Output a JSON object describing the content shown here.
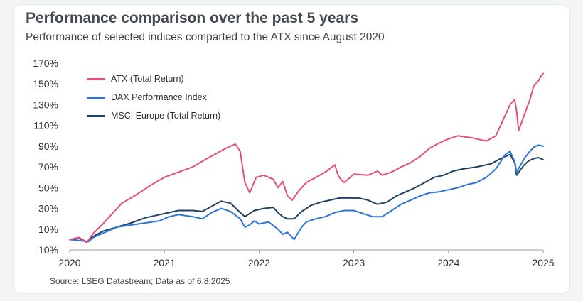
{
  "header": {
    "title": "Performance comparison over the past 5 years",
    "subtitle": "Performance of selected indices comparted to the ATX since August 2020"
  },
  "footer": {
    "source": "Source: LSEG Datastream; Data as of 6.8.2025"
  },
  "colors": {
    "atx": "#e4507a",
    "dax": "#2f74d8",
    "msci": "#1f4260",
    "axis": "#9aa1a8",
    "text": "#2b2f33"
  },
  "chart_data": {
    "type": "line",
    "title": "Performance comparison over the past 5 years",
    "subtitle": "Performance of selected indices comparted to the ATX since August 2020",
    "ylim": [
      -10,
      170
    ],
    "xlim": [
      2020,
      2025
    ],
    "y_ticks": [
      -10,
      10,
      30,
      50,
      70,
      90,
      110,
      130,
      150,
      170
    ],
    "y_tick_labels": [
      "-10%",
      "10%",
      "30%",
      "50%",
      "70%",
      "90%",
      "110%",
      "130%",
      "150%",
      "170%"
    ],
    "x_ticks": [
      2020,
      2021,
      2022,
      2023,
      2024,
      2025
    ],
    "x_tick_labels": [
      "2020",
      "2021",
      "2022",
      "2023",
      "2024",
      "2025"
    ],
    "grid": false,
    "legend_position": "top-left",
    "series": [
      {
        "name": "ATX (Total Return)",
        "color": "#e4507a",
        "points": [
          [
            2020.0,
            0
          ],
          [
            2020.1,
            2
          ],
          [
            2020.18,
            -3
          ],
          [
            2020.25,
            6
          ],
          [
            2020.35,
            15
          ],
          [
            2020.45,
            25
          ],
          [
            2020.55,
            35
          ],
          [
            2020.7,
            43
          ],
          [
            2020.85,
            52
          ],
          [
            2021.0,
            60
          ],
          [
            2021.15,
            65
          ],
          [
            2021.3,
            70
          ],
          [
            2021.45,
            78
          ],
          [
            2021.55,
            83
          ],
          [
            2021.65,
            88
          ],
          [
            2021.75,
            92
          ],
          [
            2021.8,
            85
          ],
          [
            2021.85,
            55
          ],
          [
            2021.9,
            45
          ],
          [
            2021.97,
            60
          ],
          [
            2022.05,
            62
          ],
          [
            2022.15,
            58
          ],
          [
            2022.2,
            50
          ],
          [
            2022.25,
            56
          ],
          [
            2022.3,
            42
          ],
          [
            2022.35,
            38
          ],
          [
            2022.42,
            47
          ],
          [
            2022.5,
            55
          ],
          [
            2022.6,
            60
          ],
          [
            2022.7,
            65
          ],
          [
            2022.8,
            72
          ],
          [
            2022.83,
            63
          ],
          [
            2022.86,
            58
          ],
          [
            2022.9,
            55
          ],
          [
            2023.0,
            63
          ],
          [
            2023.15,
            62
          ],
          [
            2023.25,
            66
          ],
          [
            2023.3,
            62
          ],
          [
            2023.4,
            65
          ],
          [
            2023.5,
            70
          ],
          [
            2023.6,
            74
          ],
          [
            2023.7,
            80
          ],
          [
            2023.8,
            88
          ],
          [
            2023.9,
            93
          ],
          [
            2024.0,
            97
          ],
          [
            2024.1,
            100
          ],
          [
            2024.25,
            98
          ],
          [
            2024.4,
            95
          ],
          [
            2024.5,
            100
          ],
          [
            2024.55,
            110
          ],
          [
            2024.6,
            120
          ],
          [
            2024.65,
            130
          ],
          [
            2024.7,
            135
          ],
          [
            2024.72,
            123
          ],
          [
            2024.74,
            105
          ],
          [
            2024.78,
            115
          ],
          [
            2024.82,
            125
          ],
          [
            2024.86,
            135
          ],
          [
            2024.9,
            148
          ],
          [
            2024.95,
            153
          ],
          [
            2024.98,
            158
          ],
          [
            2025.0,
            160
          ]
        ]
      },
      {
        "name": "DAX Performance Index",
        "color": "#2f74d8",
        "points": [
          [
            2020.0,
            0
          ],
          [
            2020.1,
            -1
          ],
          [
            2020.2,
            -2
          ],
          [
            2020.25,
            2
          ],
          [
            2020.35,
            6
          ],
          [
            2020.5,
            12
          ],
          [
            2020.65,
            14
          ],
          [
            2020.8,
            16
          ],
          [
            2020.95,
            18
          ],
          [
            2021.05,
            22
          ],
          [
            2021.15,
            24
          ],
          [
            2021.3,
            22
          ],
          [
            2021.4,
            20
          ],
          [
            2021.5,
            26
          ],
          [
            2021.6,
            30
          ],
          [
            2021.7,
            27
          ],
          [
            2021.8,
            20
          ],
          [
            2021.85,
            12
          ],
          [
            2021.9,
            14
          ],
          [
            2021.95,
            18
          ],
          [
            2022.0,
            15
          ],
          [
            2022.1,
            17
          ],
          [
            2022.2,
            10
          ],
          [
            2022.25,
            5
          ],
          [
            2022.3,
            7
          ],
          [
            2022.37,
            0
          ],
          [
            2022.45,
            12
          ],
          [
            2022.5,
            17
          ],
          [
            2022.6,
            20
          ],
          [
            2022.7,
            22
          ],
          [
            2022.8,
            26
          ],
          [
            2022.9,
            28
          ],
          [
            2023.0,
            28
          ],
          [
            2023.1,
            25
          ],
          [
            2023.2,
            22
          ],
          [
            2023.3,
            22
          ],
          [
            2023.4,
            28
          ],
          [
            2023.5,
            34
          ],
          [
            2023.6,
            38
          ],
          [
            2023.7,
            42
          ],
          [
            2023.8,
            45
          ],
          [
            2023.9,
            46
          ],
          [
            2024.0,
            48
          ],
          [
            2024.1,
            50
          ],
          [
            2024.2,
            53
          ],
          [
            2024.3,
            55
          ],
          [
            2024.4,
            60
          ],
          [
            2024.5,
            68
          ],
          [
            2024.55,
            75
          ],
          [
            2024.6,
            82
          ],
          [
            2024.65,
            85
          ],
          [
            2024.7,
            75
          ],
          [
            2024.72,
            65
          ],
          [
            2024.75,
            70
          ],
          [
            2024.8,
            78
          ],
          [
            2024.85,
            84
          ],
          [
            2024.9,
            89
          ],
          [
            2024.95,
            91
          ],
          [
            2025.0,
            90
          ]
        ]
      },
      {
        "name": "MSCI Europe (Total Return)",
        "color": "#1f4260",
        "points": [
          [
            2020.0,
            0
          ],
          [
            2020.1,
            1
          ],
          [
            2020.18,
            -2
          ],
          [
            2020.25,
            3
          ],
          [
            2020.35,
            8
          ],
          [
            2020.5,
            12
          ],
          [
            2020.65,
            16
          ],
          [
            2020.8,
            21
          ],
          [
            2020.95,
            24
          ],
          [
            2021.05,
            26
          ],
          [
            2021.15,
            28
          ],
          [
            2021.3,
            28
          ],
          [
            2021.4,
            27
          ],
          [
            2021.5,
            32
          ],
          [
            2021.6,
            37
          ],
          [
            2021.7,
            35
          ],
          [
            2021.8,
            26
          ],
          [
            2021.85,
            22
          ],
          [
            2021.95,
            28
          ],
          [
            2022.05,
            30
          ],
          [
            2022.15,
            31
          ],
          [
            2022.2,
            26
          ],
          [
            2022.25,
            22
          ],
          [
            2022.3,
            20
          ],
          [
            2022.37,
            20
          ],
          [
            2022.45,
            27
          ],
          [
            2022.55,
            33
          ],
          [
            2022.65,
            36
          ],
          [
            2022.75,
            38
          ],
          [
            2022.85,
            40
          ],
          [
            2022.95,
            40
          ],
          [
            2023.05,
            40
          ],
          [
            2023.15,
            38
          ],
          [
            2023.25,
            34
          ],
          [
            2023.35,
            36
          ],
          [
            2023.45,
            42
          ],
          [
            2023.55,
            46
          ],
          [
            2023.65,
            50
          ],
          [
            2023.75,
            55
          ],
          [
            2023.85,
            60
          ],
          [
            2023.95,
            62
          ],
          [
            2024.05,
            66
          ],
          [
            2024.15,
            68
          ],
          [
            2024.3,
            70
          ],
          [
            2024.45,
            73
          ],
          [
            2024.55,
            78
          ],
          [
            2024.6,
            80
          ],
          [
            2024.65,
            82
          ],
          [
            2024.7,
            74
          ],
          [
            2024.72,
            62
          ],
          [
            2024.75,
            66
          ],
          [
            2024.8,
            72
          ],
          [
            2024.85,
            76
          ],
          [
            2024.9,
            78
          ],
          [
            2024.95,
            79
          ],
          [
            2025.0,
            77
          ]
        ]
      }
    ]
  }
}
